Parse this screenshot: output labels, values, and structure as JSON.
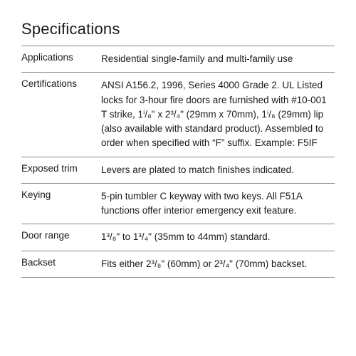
{
  "heading": "Specifications",
  "rows": [
    {
      "label": "Applications",
      "value": "Residential single-family and multi-family use"
    },
    {
      "label": "Certifications",
      "value": "ANSI A156.2, 1996, Series 4000 Grade 2. UL Listed locks for 3-hour fire doors are furnished with #10-001 T strike, 1ⁱ/₈\" x 2³/₄\" (29mm x 70mm), 1ⁱ/₈ (29mm) lip (also available with standard product). Assembled to order when specified with “F” suffix. Example: F5IF"
    },
    {
      "label": "Exposed trim",
      "value": "Levers are plated to match finishes indicated."
    },
    {
      "label": "Keying",
      "value": "5-pin tumbler C keyway with two keys. All F51A functions offer interior emergency exit feature."
    },
    {
      "label": "Door range",
      "value": "1³/₈\" to 1³/₄\" (35mm to 44mm) standard."
    },
    {
      "label": "Backset",
      "value": "Fits either 2³/₈\" (60mm) or 2³/₄\" (70mm) backset."
    }
  ]
}
